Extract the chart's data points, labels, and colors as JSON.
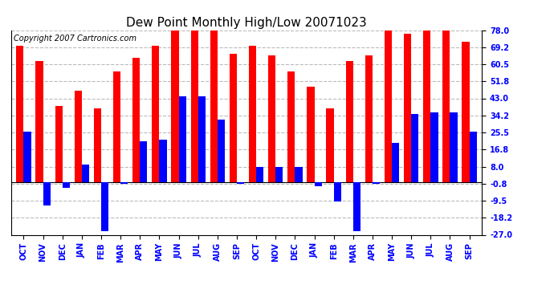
{
  "title": "Dew Point Monthly High/Low 20071023",
  "copyright": "Copyright 2007 Cartronics.com",
  "months": [
    "OCT",
    "NOV",
    "DEC",
    "JAN",
    "FEB",
    "MAR",
    "APR",
    "MAY",
    "JUN",
    "JUL",
    "AUG",
    "SEP",
    "OCT",
    "NOV",
    "DEC",
    "JAN",
    "FEB",
    "MAR",
    "APR",
    "MAY",
    "JUN",
    "JUL",
    "AUG",
    "SEP"
  ],
  "highs": [
    70,
    62,
    39,
    47,
    38,
    57,
    64,
    70,
    78,
    78,
    78,
    66,
    70,
    65,
    57,
    49,
    38,
    62,
    65,
    78,
    76,
    78,
    78,
    72
  ],
  "lows": [
    26,
    -12,
    -3,
    9,
    -25,
    -1,
    21,
    22,
    44,
    44,
    32,
    -1,
    8,
    8,
    8,
    -2,
    -10,
    -25,
    -1,
    20,
    35,
    36,
    36,
    26
  ],
  "yticks": [
    -27.0,
    -18.2,
    -9.5,
    -0.8,
    8.0,
    16.8,
    25.5,
    34.2,
    43.0,
    51.8,
    60.5,
    69.2,
    78.0
  ],
  "ylim": [
    -27.0,
    78.0
  ],
  "bar_width": 0.38,
  "high_color": "#ff0000",
  "low_color": "#0000ff",
  "bg_color": "#ffffff",
  "grid_color": "#bbbbbb",
  "title_fontsize": 11,
  "copyright_fontsize": 7,
  "tick_fontsize": 7
}
